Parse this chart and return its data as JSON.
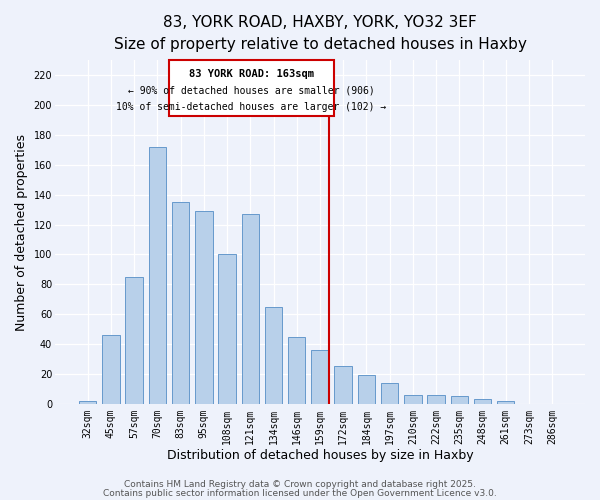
{
  "title": "83, YORK ROAD, HAXBY, YORK, YO32 3EF",
  "subtitle": "Size of property relative to detached houses in Haxby",
  "xlabel": "Distribution of detached houses by size in Haxby",
  "ylabel": "Number of detached properties",
  "categories": [
    "32sqm",
    "45sqm",
    "57sqm",
    "70sqm",
    "83sqm",
    "95sqm",
    "108sqm",
    "121sqm",
    "134sqm",
    "146sqm",
    "159sqm",
    "172sqm",
    "184sqm",
    "197sqm",
    "210sqm",
    "222sqm",
    "235sqm",
    "248sqm",
    "261sqm",
    "273sqm",
    "286sqm"
  ],
  "values": [
    2,
    46,
    85,
    172,
    135,
    129,
    100,
    127,
    65,
    45,
    36,
    25,
    19,
    14,
    6,
    6,
    5,
    3,
    2,
    0,
    0
  ],
  "bar_color": "#b8d0ea",
  "bar_edge_color": "#6699cc",
  "vline_x_idx": 10,
  "vline_color": "#cc0000",
  "annotation_title": "83 YORK ROAD: 163sqm",
  "annotation_line1": "← 90% of detached houses are smaller (906)",
  "annotation_line2": "10% of semi-detached houses are larger (102) →",
  "annotation_box_color": "#ffffff",
  "annotation_box_edge": "#cc0000",
  "ylim": [
    0,
    230
  ],
  "yticks": [
    0,
    20,
    40,
    60,
    80,
    100,
    120,
    140,
    160,
    180,
    200,
    220
  ],
  "footer1": "Contains HM Land Registry data © Crown copyright and database right 2025.",
  "footer2": "Contains public sector information licensed under the Open Government Licence v3.0.",
  "background_color": "#eef2fb",
  "grid_color": "#ffffff",
  "title_fontsize": 11,
  "subtitle_fontsize": 9,
  "tick_fontsize": 7,
  "label_fontsize": 9,
  "footer_fontsize": 6.5
}
